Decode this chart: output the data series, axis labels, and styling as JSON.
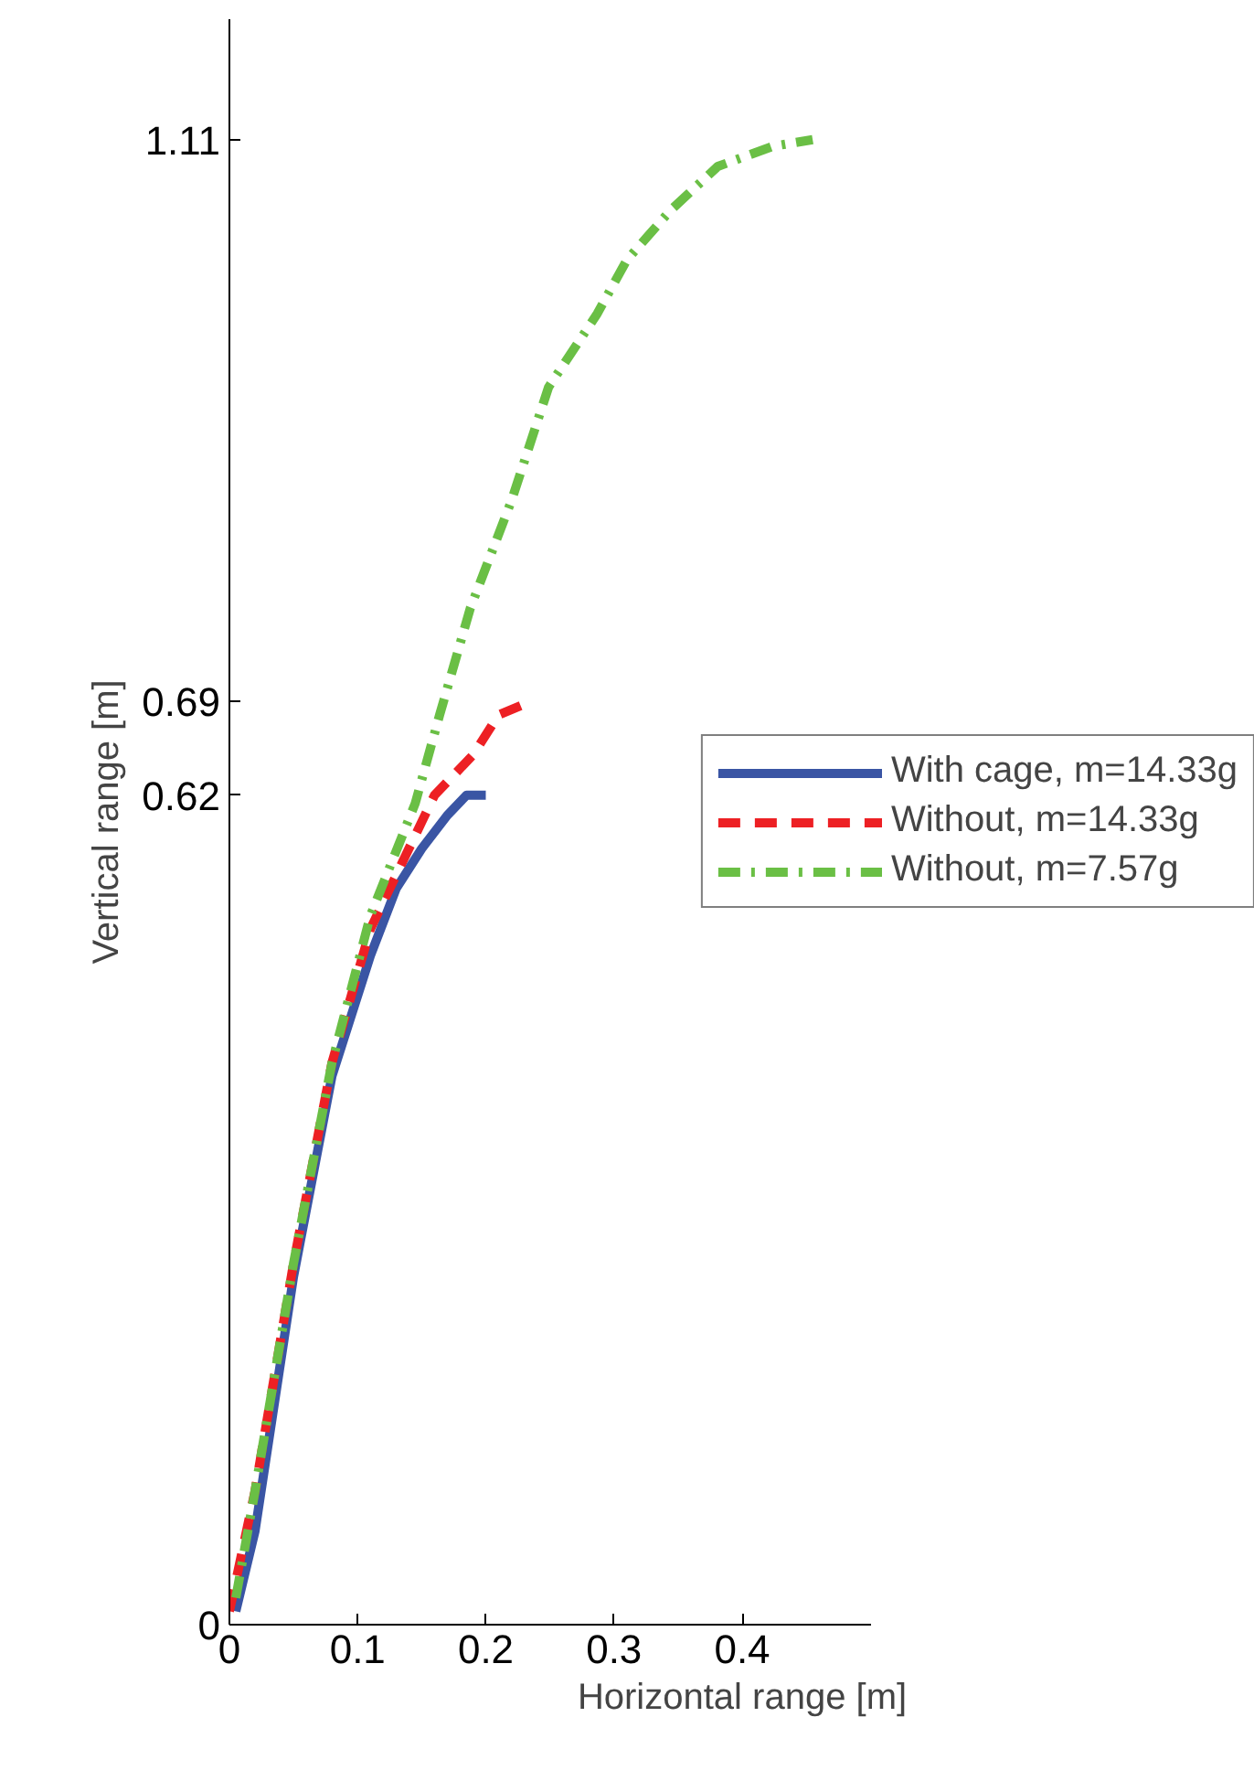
{
  "chart_data": {
    "type": "line",
    "xlabel": "Horizontal range [m]",
    "ylabel": "Vertical range [m]",
    "xlim": [
      0,
      0.5
    ],
    "ylim": [
      0,
      1.2
    ],
    "xticks": [
      0,
      0.1,
      0.2,
      0.3,
      0.4
    ],
    "yticks": [
      0,
      0.62,
      0.69,
      1.11
    ],
    "grid": false,
    "legend": "right",
    "marker": "none",
    "series": [
      {
        "name": "With cage, m=14.33g",
        "color": "#3a55a4",
        "line_style": "solid",
        "x": [
          0.005,
          0.02,
          0.05,
          0.08,
          0.11,
          0.13,
          0.15,
          0.17,
          0.185,
          0.2
        ],
        "values": [
          0.01,
          0.07,
          0.26,
          0.41,
          0.5,
          0.55,
          0.58,
          0.605,
          0.62,
          0.62
        ]
      },
      {
        "name": "Without, m=14.33g",
        "color": "#ed2024",
        "line_style": "dashed",
        "x": [
          0,
          0.02,
          0.05,
          0.08,
          0.11,
          0.14,
          0.16,
          0.19,
          0.21,
          0.235
        ],
        "values": [
          0.01,
          0.1,
          0.27,
          0.42,
          0.52,
          0.58,
          0.62,
          0.65,
          0.68,
          0.69
        ]
      },
      {
        "name": "Without, m=7.57g",
        "color": "#6abf45",
        "line_style": "dashdot",
        "x": [
          0.005,
          0.02,
          0.05,
          0.08,
          0.11,
          0.145,
          0.164,
          0.188,
          0.22,
          0.249,
          0.287,
          0.31,
          0.344,
          0.381,
          0.424,
          0.455
        ],
        "values": [
          0.02,
          0.1,
          0.27,
          0.42,
          0.53,
          0.614,
          0.68,
          0.76,
          0.84,
          0.925,
          0.98,
          1.02,
          1.057,
          1.09,
          1.105,
          1.11
        ]
      }
    ]
  }
}
